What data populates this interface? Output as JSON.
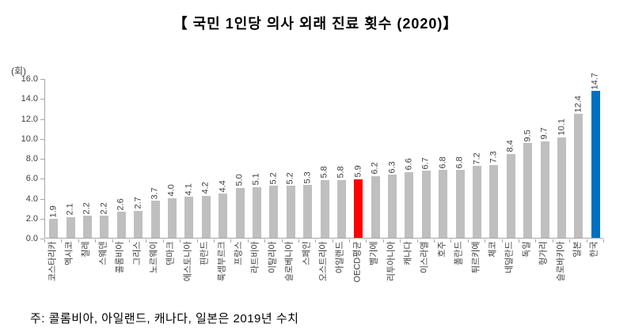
{
  "title": "【 국민 1인당 의사 외래 진료 횟수 (2020)】",
  "note": "주: 콜롬비아, 아일랜드, 캐나다, 일본은 2019년 수치",
  "y_axis": {
    "unit": "(회)",
    "tick_labels": [
      "0.0",
      "2.0",
      "4.0",
      "6.0",
      "8.0",
      "10.0",
      "12.0",
      "14.0",
      "16.0"
    ]
  },
  "chart_data": {
    "type": "bar",
    "title": "【 국민 1인당 의사 외래 진료 횟수 (2020)】",
    "xlabel": "",
    "ylabel": "(회)",
    "ylim": [
      0,
      16
    ],
    "ytick_step": 2,
    "grid": false,
    "legend": "none",
    "value_labels": "rotated above bars, one decimal",
    "categories": [
      "코스타리카",
      "멕시코",
      "칠레",
      "스웨덴",
      "콜롬비아",
      "그리스",
      "노르웨이",
      "덴마크",
      "에스토니아",
      "핀란드",
      "룩셈부르크",
      "프랑스",
      "라트비아",
      "이탈리아",
      "슬로베니아",
      "스페인",
      "오스트리아",
      "아일랜드",
      "OECD평균",
      "벨기에",
      "리투아니아",
      "캐나다",
      "이스라엘",
      "호주",
      "폴란드",
      "튀르키예",
      "체코",
      "네덜란드",
      "독일",
      "헝가리",
      "슬로바키아",
      "일본",
      "한국"
    ],
    "values": [
      1.9,
      2.1,
      2.2,
      2.2,
      2.6,
      2.7,
      3.7,
      4.0,
      4.1,
      4.2,
      4.4,
      5.0,
      5.1,
      5.2,
      5.2,
      5.3,
      5.8,
      5.8,
      5.9,
      6.2,
      6.3,
      6.6,
      6.7,
      6.8,
      6.8,
      7.2,
      7.3,
      8.4,
      9.5,
      9.7,
      10.1,
      12.4,
      14.7
    ],
    "colors": {
      "default_bar": "#bfbfbf",
      "highlights": {
        "OECD평균": "#ff0000",
        "한국": "#0070c0"
      },
      "axis": "#a6a6a6",
      "label_text": "#3f3f3f"
    }
  }
}
